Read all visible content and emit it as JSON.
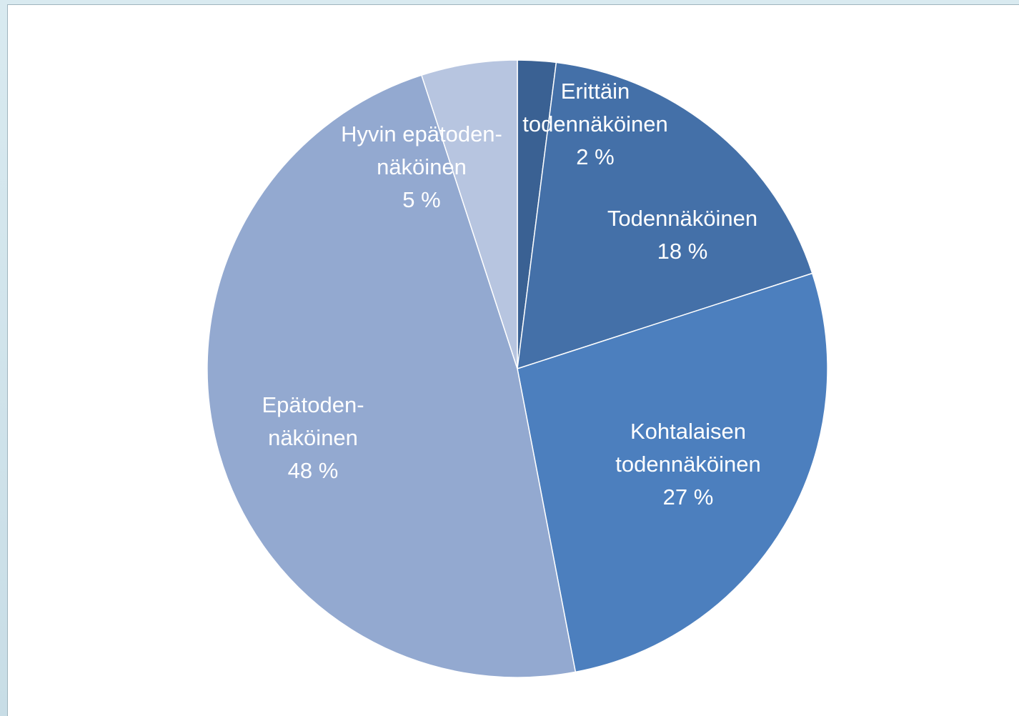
{
  "chart_data": {
    "type": "pie",
    "title": "",
    "slices": [
      {
        "label": [
          "Erittäin",
          "todennäköinen"
        ],
        "percent_label": "2 %",
        "value": 2,
        "color": "#3a6193"
      },
      {
        "label": [
          "Todennäköinen"
        ],
        "percent_label": "18 %",
        "value": 18,
        "color": "#4470a8"
      },
      {
        "label": [
          "Kohtalaisen",
          "todennäköinen"
        ],
        "percent_label": "27 %",
        "value": 27,
        "color": "#4c7fbe"
      },
      {
        "label": [
          "Epätoden-",
          "näköinen"
        ],
        "percent_label": "48 %",
        "value": 48,
        "color": "#93a9d0"
      },
      {
        "label": [
          "Hyvin epätoden-",
          "näköinen"
        ],
        "percent_label": "5 %",
        "value": 5,
        "color": "#b7c5e0"
      }
    ],
    "start_angle": "12 o'clock",
    "direction": "clockwise",
    "legend": "none"
  }
}
